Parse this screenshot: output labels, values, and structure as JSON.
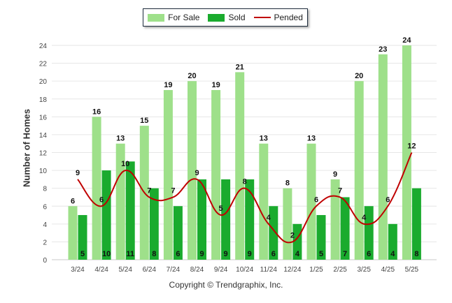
{
  "legend": {
    "items": [
      {
        "label": "For Sale",
        "color": "#9ee08a"
      },
      {
        "label": "Sold",
        "color": "#1aab2e"
      },
      {
        "label": "Pended",
        "color": "#c00000"
      }
    ]
  },
  "copyright": "Copyright © Trendgraphix, Inc.",
  "chart_data": {
    "type": "bar",
    "title": "",
    "xlabel": "",
    "ylabel": "Number of Homes",
    "ylim": [
      0,
      24
    ],
    "yticks": [
      "0",
      "2",
      "4",
      "6",
      "8",
      "10",
      "12",
      "14",
      "16",
      "18",
      "20",
      "22",
      "24"
    ],
    "grid": true,
    "legend_position": "top-center",
    "categories": [
      "3/24",
      "4/24",
      "5/24",
      "6/24",
      "7/24",
      "8/24",
      "9/24",
      "10/24",
      "11/24",
      "12/24",
      "1/25",
      "2/25",
      "3/25",
      "4/25",
      "5/25"
    ],
    "series": [
      {
        "name": "For Sale",
        "type": "bar",
        "color": "#9ee08a",
        "values": [
          6,
          16,
          13,
          15,
          19,
          20,
          19,
          21,
          13,
          8,
          13,
          9,
          20,
          23,
          24
        ]
      },
      {
        "name": "Sold",
        "type": "bar",
        "color": "#1aab2e",
        "values": [
          5,
          10,
          11,
          8,
          6,
          9,
          9,
          9,
          6,
          4,
          5,
          7,
          6,
          4,
          8
        ]
      },
      {
        "name": "Pended",
        "type": "line",
        "color": "#c00000",
        "values": [
          9,
          6,
          10,
          7,
          7,
          9,
          5,
          8,
          4,
          2,
          6,
          7,
          4,
          6,
          12
        ]
      }
    ]
  }
}
